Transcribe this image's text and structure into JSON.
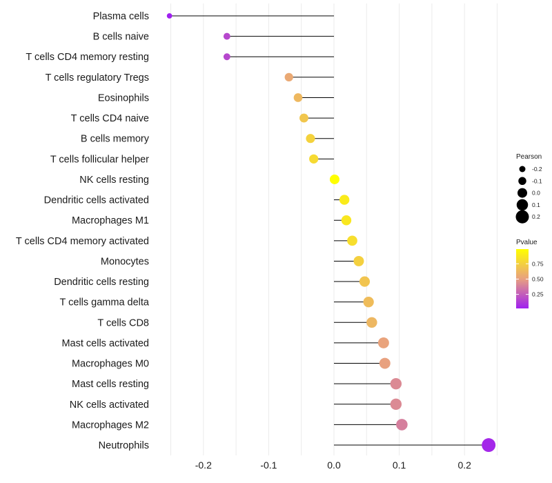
{
  "chart_data": {
    "type": "lollipop",
    "title": "",
    "xlabel": "",
    "ylabel": "",
    "xlim": [
      -0.25,
      0.25
    ],
    "x_ticks": [
      -0.2,
      -0.1,
      0.0,
      0.1,
      0.2
    ],
    "x_tick_labels": [
      "-0.2",
      "-0.1",
      "0.0",
      "0.1",
      "0.2"
    ],
    "grid": true,
    "points": [
      {
        "category": "Plasma cells",
        "pearson": -0.252,
        "pvalue": 0.02
      },
      {
        "category": "B cells naive",
        "pearson": -0.164,
        "pvalue": 0.17
      },
      {
        "category": "T cells CD4 memory resting",
        "pearson": -0.164,
        "pvalue": 0.17
      },
      {
        "category": "T cells regulatory  Tregs ",
        "pearson": -0.069,
        "pvalue": 0.55
      },
      {
        "category": "Eosinophils",
        "pearson": -0.055,
        "pvalue": 0.63
      },
      {
        "category": "T cells CD4 naive",
        "pearson": -0.046,
        "pvalue": 0.7
      },
      {
        "category": "B cells memory",
        "pearson": -0.036,
        "pvalue": 0.76
      },
      {
        "category": "T cells follicular helper",
        "pearson": -0.031,
        "pvalue": 0.8
      },
      {
        "category": "NK cells resting",
        "pearson": 0.001,
        "pvalue": 0.99
      },
      {
        "category": "Dendritic cells activated",
        "pearson": 0.016,
        "pvalue": 0.89
      },
      {
        "category": "Macrophages M1",
        "pearson": 0.019,
        "pvalue": 0.87
      },
      {
        "category": "T cells CD4 memory activated",
        "pearson": 0.028,
        "pvalue": 0.82
      },
      {
        "category": "Monocytes",
        "pearson": 0.038,
        "pvalue": 0.75
      },
      {
        "category": "Dendritic cells resting",
        "pearson": 0.047,
        "pvalue": 0.69
      },
      {
        "category": "T cells gamma delta",
        "pearson": 0.053,
        "pvalue": 0.65
      },
      {
        "category": "T cells CD8",
        "pearson": 0.058,
        "pvalue": 0.62
      },
      {
        "category": "Mast cells activated",
        "pearson": 0.076,
        "pvalue": 0.52
      },
      {
        "category": "Macrophages M0",
        "pearson": 0.078,
        "pvalue": 0.51
      },
      {
        "category": "Mast cells resting",
        "pearson": 0.095,
        "pvalue": 0.42
      },
      {
        "category": "NK cells activated",
        "pearson": 0.095,
        "pvalue": 0.42
      },
      {
        "category": "Macrophages M2",
        "pearson": 0.104,
        "pvalue": 0.38
      },
      {
        "category": "Neutrophils",
        "pearson": 0.237,
        "pvalue": 0.05
      }
    ],
    "legend_size": {
      "title": "Pearson",
      "labels": [
        "-0.2",
        "-0.1",
        "0.0",
        "0.1",
        "0.2"
      ],
      "values": [
        -0.2,
        -0.1,
        0.0,
        0.1,
        0.2
      ]
    },
    "legend_color": {
      "title": "Pvalue",
      "labels": [
        "0.75",
        "0.50",
        "0.25"
      ],
      "values": [
        0.75,
        0.5,
        0.25
      ],
      "range": [
        0.02,
        0.99
      ],
      "low_color": "#a020f0",
      "mid_color": "#e8a080",
      "high_color": "#ffff00"
    },
    "legend_position": "right"
  }
}
